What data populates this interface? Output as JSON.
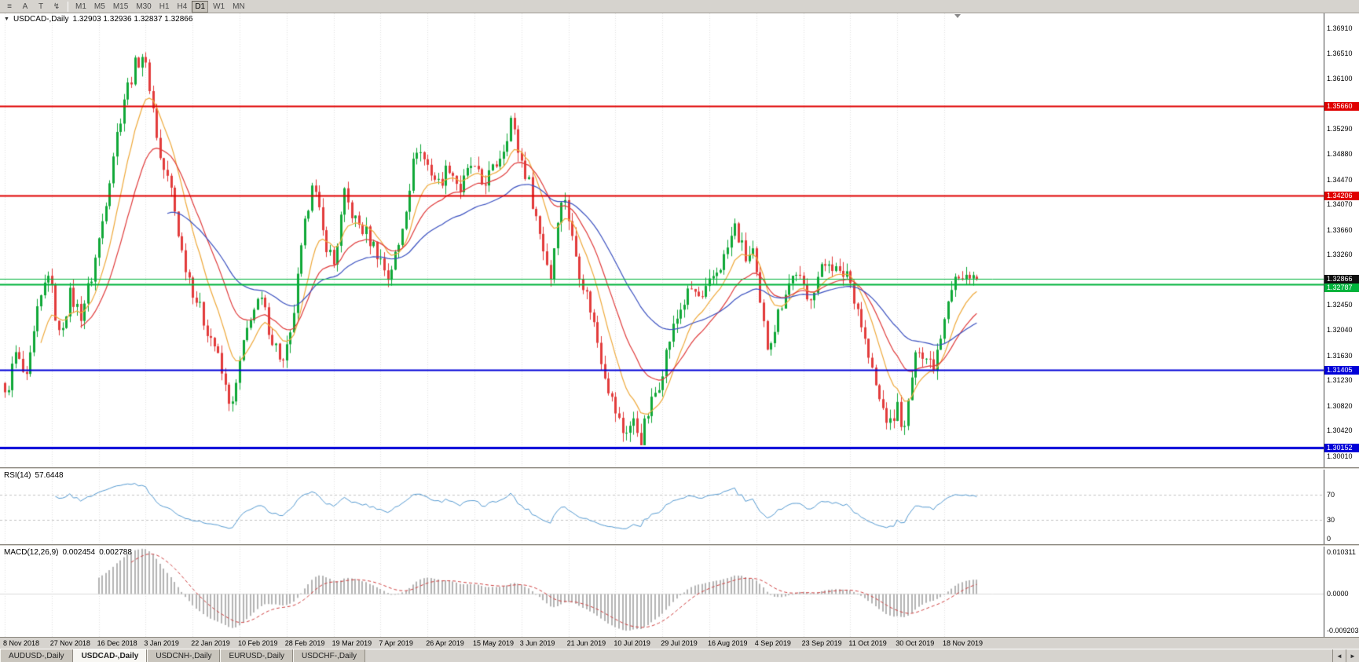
{
  "toolbar": {
    "buttons": [
      {
        "name": "bar-chart-icon",
        "glyph": "≡"
      },
      {
        "name": "cursor-tool-button",
        "glyph": "A"
      },
      {
        "name": "text-tool-button",
        "glyph": "T"
      },
      {
        "name": "zigzag-tool-button",
        "glyph": "↯"
      }
    ],
    "timeframes": [
      "M1",
      "M5",
      "M15",
      "M30",
      "H1",
      "H4",
      "D1",
      "W1",
      "MN"
    ],
    "selected_timeframe": "D1"
  },
  "chart_header": {
    "dropdown_glyph": "▼",
    "symbol": "USDCAD-,Daily",
    "ohlc": "1.32903 1.32936 1.32837 1.32866"
  },
  "rsi_panel": {
    "label": "RSI(14)",
    "value": "57.6448",
    "axis": [
      {
        "label": "70",
        "value": 70
      },
      {
        "label": "30",
        "value": 30
      },
      {
        "label": "0",
        "value": 0
      }
    ]
  },
  "macd_panel": {
    "label": "MACD(12,26,9)",
    "main_value": "0.002454",
    "signal_value": "0.002788",
    "axis": [
      {
        "label": "0.010311",
        "value": 0.010311
      },
      {
        "label": "0.0000",
        "value": 0
      },
      {
        "label": "-0.009203",
        "value": -0.009203
      }
    ]
  },
  "tabs": {
    "items": [
      "AUDUSD-,Daily",
      "USDCAD-,Daily",
      "USDCNH-,Daily",
      "EURUSD-,Daily",
      "USDCHF-,Daily"
    ],
    "active_index": 1,
    "scroll_left": "◄",
    "scroll_right": "►"
  },
  "chart_data": {
    "type": "candlestick",
    "symbol": "USDCAD",
    "timeframe": "D1",
    "last_candle": {
      "open": 1.32903,
      "high": 1.32936,
      "low": 1.32837,
      "close": 1.32866
    },
    "candle_count": 270,
    "bars_per_x_label": 13,
    "visible_price_range": [
      1.2983,
      1.3715
    ],
    "price_axis_ticks": [
      "1.36910",
      "1.36510",
      "1.36100",
      "1.35290",
      "1.34880",
      "1.34470",
      "1.34070",
      "1.33660",
      "1.33260",
      "1.32450",
      "1.32040",
      "1.31630",
      "1.31230",
      "1.30820",
      "1.30420",
      "1.30010"
    ],
    "x_labels": [
      "8 Nov 2018",
      "27 Nov 2018",
      "16 Dec 2018",
      "3 Jan 2019",
      "22 Jan 2019",
      "10 Feb 2019",
      "28 Feb 2019",
      "19 Mar 2019",
      "7 Apr 2019",
      "26 Apr 2019",
      "15 May 2019",
      "3 Jun 2019",
      "21 Jun 2019",
      "10 Jul 2019",
      "29 Jul 2019",
      "16 Aug 2019",
      "4 Sep 2019",
      "23 Sep 2019",
      "11 Oct 2019",
      "30 Oct 2019",
      "18 Nov 2019"
    ],
    "up_color": "#0fa837",
    "down_color": "#e23b3b",
    "levels": [
      {
        "price": 1.3566,
        "label": "1.35660",
        "color": "#e00000",
        "line_width": 2,
        "box": true
      },
      {
        "price": 1.34206,
        "label": "1.34206",
        "color": "#e00000",
        "line_width": 2,
        "box": true
      },
      {
        "price": 1.3287,
        "label": "",
        "color": "#00b43c",
        "line_width": 1,
        "box": false
      },
      {
        "price": 1.32787,
        "label": "1.32787",
        "color": "#00b43c",
        "line_width": 2,
        "box": true
      },
      {
        "price": 1.32866,
        "label": "1.32866",
        "color": "#101010",
        "line_width": 0,
        "box": true
      },
      {
        "price": 1.31405,
        "label": "1.31405",
        "color": "#0000d8",
        "line_width": 2,
        "box": true
      },
      {
        "price": 1.30152,
        "label": "1.30152",
        "color": "#0000d8",
        "line_width": 3,
        "box": true
      }
    ],
    "moving_averages": [
      {
        "period": 10,
        "color": "#efa93a"
      },
      {
        "period": 21,
        "color": "#e03a3a"
      },
      {
        "period": 45,
        "color": "#3a50c0"
      }
    ],
    "rsi": {
      "period": 14,
      "current": 57.6448,
      "color": "#569bd2",
      "guide_levels": [
        70,
        30
      ]
    },
    "macd": {
      "fast": 12,
      "slow": 26,
      "signal_period": 9,
      "current_main": 0.002454,
      "current_signal": 0.002788,
      "histogram_color": "#b4b4b4",
      "signal_color": "#d04040",
      "axis_range": [
        -0.009203,
        0.010311
      ]
    },
    "price_path": [
      [
        0,
        1.3095
      ],
      [
        3,
        1.3165
      ],
      [
        6,
        1.312
      ],
      [
        9,
        1.323
      ],
      [
        12,
        1.33
      ],
      [
        15,
        1.3195
      ],
      [
        18,
        1.326
      ],
      [
        21,
        1.323
      ],
      [
        24,
        1.329
      ],
      [
        27,
        1.338
      ],
      [
        30,
        1.349
      ],
      [
        33,
        1.358
      ],
      [
        36,
        1.363
      ],
      [
        38,
        1.365
      ],
      [
        40,
        1.36
      ],
      [
        43,
        1.348
      ],
      [
        46,
        1.343
      ],
      [
        49,
        1.333
      ],
      [
        52,
        1.327
      ],
      [
        55,
        1.322
      ],
      [
        58,
        1.318
      ],
      [
        61,
        1.311
      ],
      [
        63,
        1.308
      ],
      [
        65,
        1.315
      ],
      [
        68,
        1.323
      ],
      [
        71,
        1.325
      ],
      [
        74,
        1.319
      ],
      [
        77,
        1.315
      ],
      [
        79,
        1.319
      ],
      [
        82,
        1.333
      ],
      [
        85,
        1.345
      ],
      [
        88,
        1.336
      ],
      [
        91,
        1.331
      ],
      [
        94,
        1.342
      ],
      [
        97,
        1.338
      ],
      [
        100,
        1.336
      ],
      [
        103,
        1.333
      ],
      [
        106,
        1.329
      ],
      [
        109,
        1.334
      ],
      [
        112,
        1.344
      ],
      [
        114,
        1.35
      ],
      [
        117,
        1.347
      ],
      [
        120,
        1.344
      ],
      [
        123,
        1.347
      ],
      [
        126,
        1.343
      ],
      [
        129,
        1.347
      ],
      [
        132,
        1.344
      ],
      [
        135,
        1.346
      ],
      [
        138,
        1.35
      ],
      [
        140,
        1.3545
      ],
      [
        142,
        1.3495
      ],
      [
        145,
        1.344
      ],
      [
        148,
        1.336
      ],
      [
        151,
        1.329
      ],
      [
        153,
        1.339
      ],
      [
        155,
        1.342
      ],
      [
        157,
        1.335
      ],
      [
        159,
        1.33
      ],
      [
        162,
        1.324
      ],
      [
        165,
        1.316
      ],
      [
        168,
        1.309
      ],
      [
        171,
        1.304
      ],
      [
        174,
        1.3055
      ],
      [
        176,
        1.303
      ],
      [
        178,
        1.307
      ],
      [
        181,
        1.312
      ],
      [
        184,
        1.319
      ],
      [
        187,
        1.324
      ],
      [
        190,
        1.327
      ],
      [
        193,
        1.325
      ],
      [
        196,
        1.329
      ],
      [
        199,
        1.332
      ],
      [
        202,
        1.337
      ],
      [
        205,
        1.332
      ],
      [
        207,
        1.333
      ],
      [
        209,
        1.324
      ],
      [
        211,
        1.318
      ],
      [
        213,
        1.321
      ],
      [
        216,
        1.327
      ],
      [
        219,
        1.33
      ],
      [
        222,
        1.325
      ],
      [
        225,
        1.329
      ],
      [
        228,
        1.332
      ],
      [
        231,
        1.329
      ],
      [
        233,
        1.33
      ],
      [
        236,
        1.324
      ],
      [
        239,
        1.316
      ],
      [
        242,
        1.309
      ],
      [
        245,
        1.305
      ],
      [
        247,
        1.308
      ],
      [
        249,
        1.304
      ],
      [
        251,
        1.313
      ],
      [
        253,
        1.318
      ],
      [
        255,
        1.316
      ],
      [
        257,
        1.315
      ],
      [
        259,
        1.32
      ],
      [
        261,
        1.326
      ],
      [
        263,
        1.329
      ],
      [
        265,
        1.328
      ],
      [
        267,
        1.33
      ],
      [
        269,
        1.32866
      ]
    ]
  }
}
